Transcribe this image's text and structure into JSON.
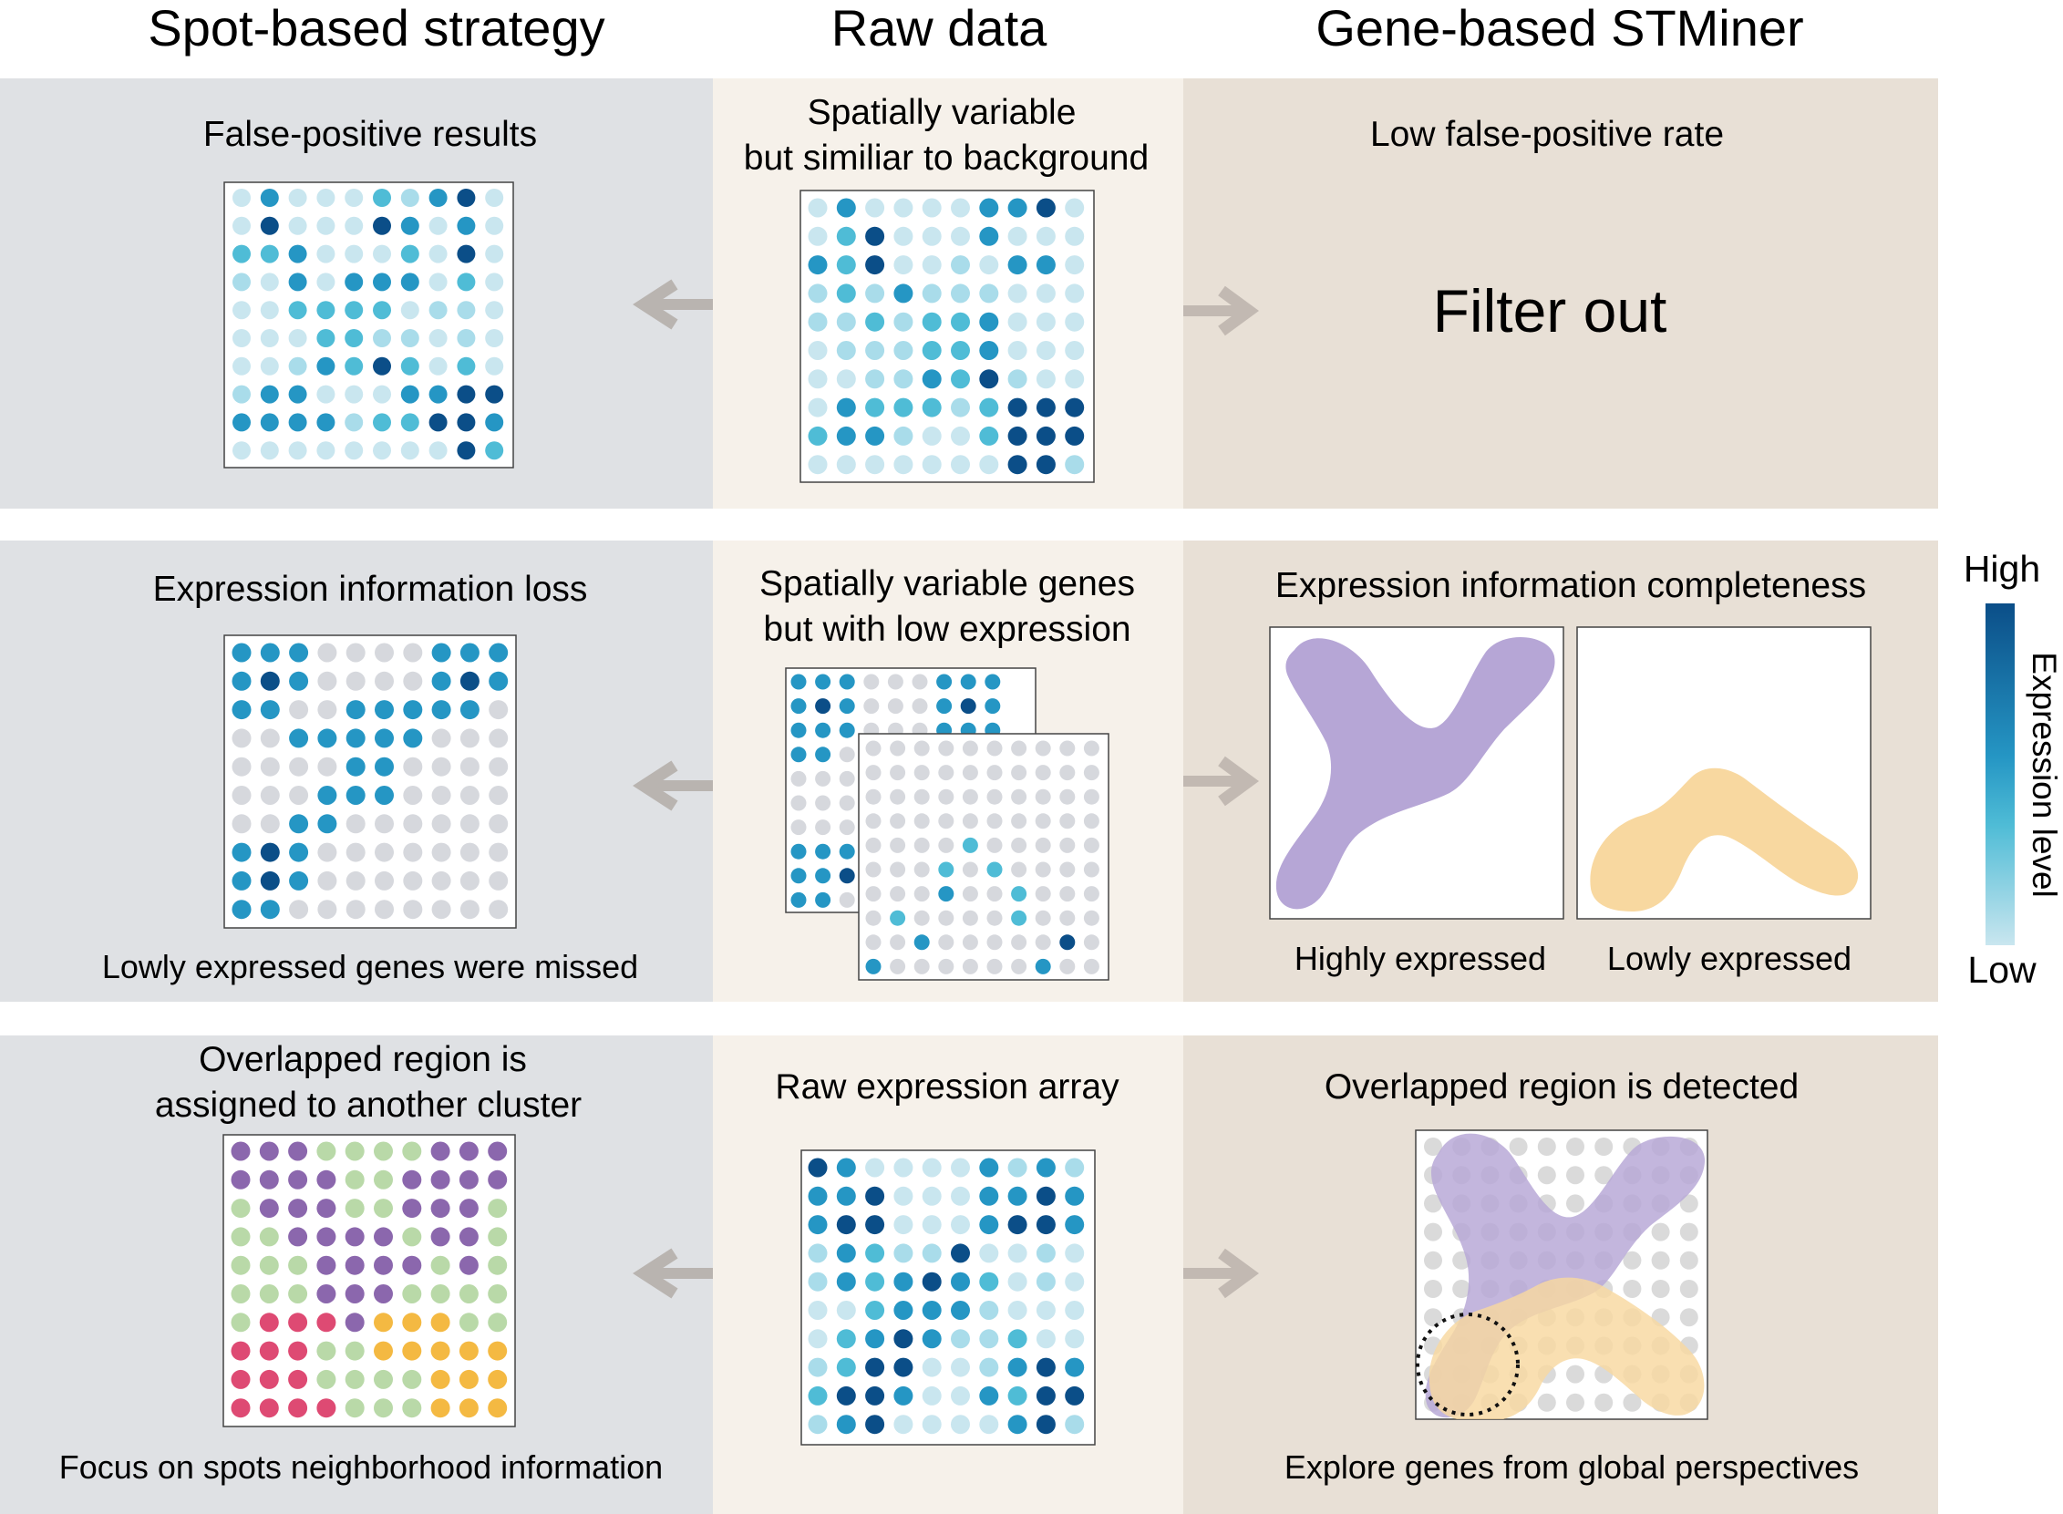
{
  "columns": {
    "spot": "Spot-based strategy",
    "raw": "Raw data",
    "gene": "Gene-based STMiner"
  },
  "rows": [
    {
      "left_title": [
        "False-positive results"
      ],
      "left_caption": "",
      "mid_title": [
        "Spatially variable",
        "but similiar to background"
      ],
      "right_title": [
        "Low false-positive rate"
      ],
      "right_center_text": "Filter out",
      "right_caption": ""
    },
    {
      "left_title": [
        "Expression information loss"
      ],
      "left_caption": "Lowly expressed genes were missed",
      "mid_title": [
        "Spatially variable genes",
        "but with low expression"
      ],
      "right_title": [
        "Expression information completeness"
      ],
      "right_labels": [
        "Highly expressed",
        "Lowly expressed"
      ],
      "right_caption": ""
    },
    {
      "left_title": [
        "Overlapped region is",
        "assigned to another cluster"
      ],
      "left_caption": "Focus on spots neighborhood information",
      "mid_title": [
        "Raw expression array"
      ],
      "right_title": [
        "Overlapped region is detected"
      ],
      "right_caption": "Explore genes from global perspectives"
    }
  ],
  "legend": {
    "high": "High",
    "low": "Low",
    "title": "Expression level"
  },
  "colors": {
    "panel_left": "#dfe1e4",
    "panel_mid": "#f6f1ea",
    "panel_right": "#e8e0d6",
    "arrow": "#b9b4b0",
    "expr_scale": [
      "#c9e6ef",
      "#a9dcea",
      "#4fbcd6",
      "#2596c4",
      "#0b4e88"
    ],
    "gray_dot": "#d6d8dd",
    "cluster": {
      "P": "#8b67ad",
      "G": "#b9d9a8",
      "R": "#de4a73",
      "O": "#f4b942"
    },
    "shape_purple": "#b6a6d6",
    "shape_yellow": "#f8d8a0"
  },
  "grids": {
    "r1_left": [
      "0300021340",
      "0400043030",
      "2230002040",
      "1030333020",
      "0022220110",
      "0002211010",
      "0013242020",
      "1330003344",
      "3333122443",
      "0000000042"
    ],
    "r1_mid": [
      "0300003340",
      "0240003000",
      "3240010330",
      "1213111000",
      "1121223000",
      "0111223000",
      "0011324100",
      "0322212444",
      "2331002444",
      "0000000441"
    ],
    "r2_left": [
      "3330000333",
      "3430000343",
      "3300333330",
      "0033333000",
      "0000330000",
      "0003330000",
      "0033000000",
      "3430000000",
      "3430000000",
      "3300000000"
    ],
    "r2_back": [
      "333000333",
      "343000343",
      "333000333",
      "330000000",
      "000000000",
      "000000000",
      "000000000",
      "333000000",
      "334000000",
      "330000000"
    ],
    "r2_front": [
      "0000000000",
      "0000000000",
      "0000000000",
      "0000000000",
      "0000200000",
      "0002020000",
      "0003002000",
      "0200002000",
      "0030000040",
      "3000000300"
    ],
    "r3_left": [
      "PPPGGGGPPP",
      "PPPPGGPPPP",
      "GPPPGGPPPG",
      "GGPPPPGPPG",
      "GGGPPPPGPG",
      "GGGPPPGGGG",
      "GRRRPOOOGG",
      "RRRGGOOOOO",
      "RRRGGGGOOO",
      "RRRRGGGOOO"
    ],
    "r3_mid": [
      "4300003131",
      "3340003343",
      "3440003443",
      "1321140010",
      "1323432010",
      "0023331000",
      "0234311200",
      "1244001343",
      "2443003244",
      "1340000341"
    ]
  }
}
